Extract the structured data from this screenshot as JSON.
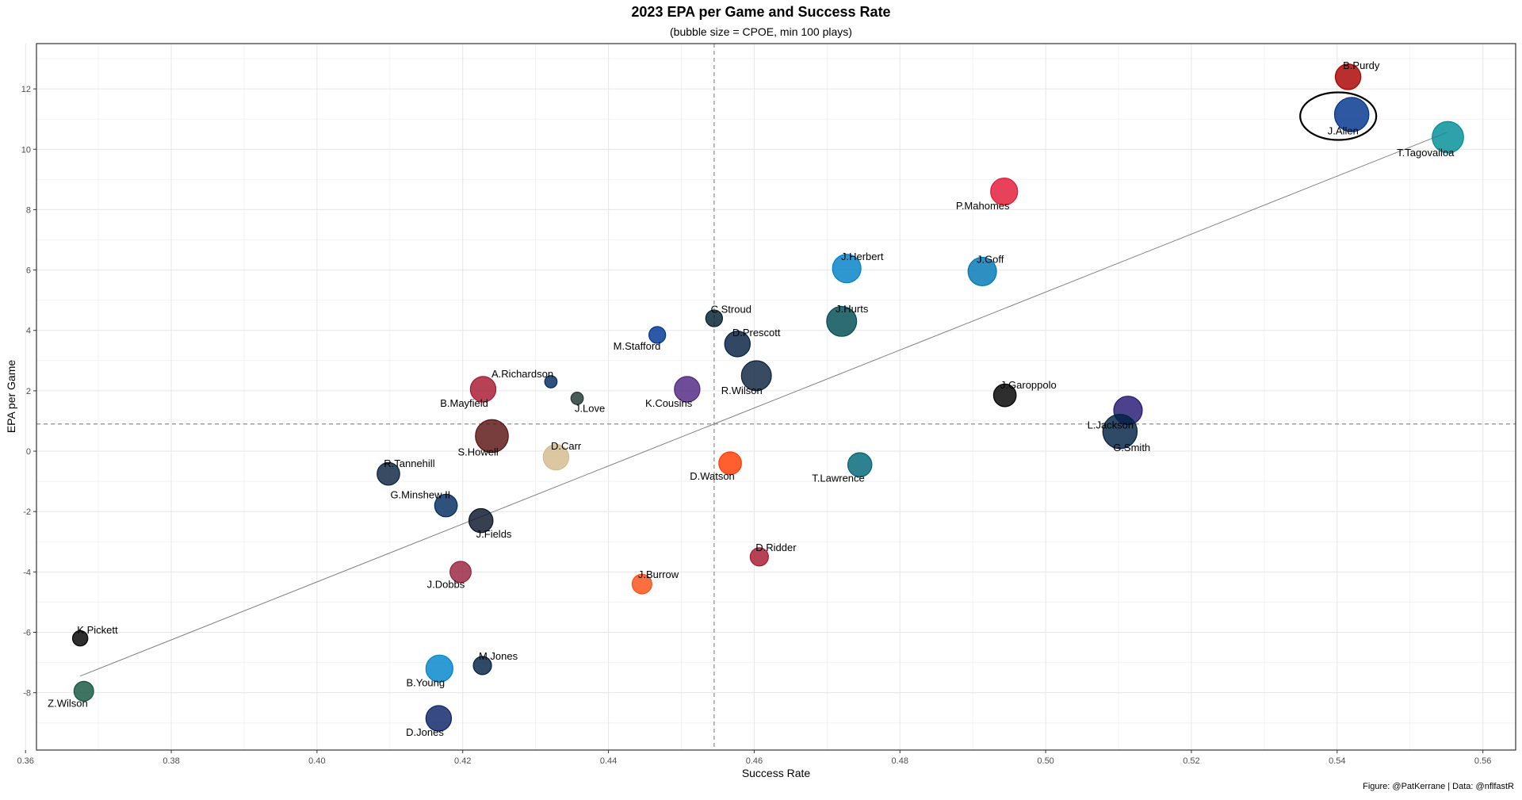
{
  "chart_data": {
    "type": "scatter",
    "title": "2023 EPA per Game and Success Rate",
    "subtitle": "(bubble size = CPOE, min 100 plays)",
    "xlabel": "Success Rate",
    "ylabel": "EPA per Game",
    "caption": "Figure: @PatKerrane | Data: @nflfastR",
    "xlim": [
      0.3615,
      0.5645
    ],
    "ylim": [
      -9.9,
      13.5
    ],
    "xticks": [
      "0.36",
      "0.38",
      "0.40",
      "0.42",
      "0.44",
      "0.46",
      "0.48",
      "0.50",
      "0.52",
      "0.54",
      "0.56"
    ],
    "xtick_values": [
      0.36,
      0.38,
      0.4,
      0.42,
      0.44,
      0.46,
      0.48,
      0.5,
      0.52,
      0.54,
      0.56
    ],
    "yticks": [
      "-8",
      "-6",
      "-4",
      "-2",
      "0",
      "2",
      "4",
      "6",
      "8",
      "10",
      "12"
    ],
    "ytick_values": [
      -8,
      -6,
      -4,
      -2,
      0,
      2,
      4,
      6,
      8,
      10,
      12
    ],
    "grid": true,
    "mean_lines": {
      "x": 0.4545,
      "y": 0.9
    },
    "trend_line": {
      "x": [
        0.3675,
        0.555
      ],
      "y": [
        -7.45,
        10.55
      ]
    },
    "highlight": "J.Allen",
    "points": [
      {
        "name": "B.Purdy",
        "x": 0.5415,
        "y": 12.4,
        "size": 6,
        "color": "#AA0000",
        "label_pos": "above-right"
      },
      {
        "name": "J.Allen",
        "x": 0.542,
        "y": 11.15,
        "size": 9,
        "color": "#00338D",
        "label_pos": "below-left"
      },
      {
        "name": "T.Tagovailoa",
        "x": 0.5552,
        "y": 10.4,
        "size": 8,
        "color": "#008E97",
        "label_pos": "below-left"
      },
      {
        "name": "P.Mahomes",
        "x": 0.4943,
        "y": 8.6,
        "size": 6.5,
        "color": "#E31837",
        "label_pos": "below-left"
      },
      {
        "name": "J.Herbert",
        "x": 0.4727,
        "y": 6.05,
        "size": 7,
        "color": "#0080C6",
        "label_pos": "above-right"
      },
      {
        "name": "J.Goff",
        "x": 0.4913,
        "y": 5.95,
        "size": 7,
        "color": "#0076B6",
        "label_pos": "above-right"
      },
      {
        "name": "C.Stroud",
        "x": 0.4545,
        "y": 4.4,
        "size": 3,
        "color": "#03202F",
        "label_pos": "above-right"
      },
      {
        "name": "M.Stafford",
        "x": 0.4467,
        "y": 3.85,
        "size": 3,
        "color": "#003594",
        "label_pos": "below-left"
      },
      {
        "name": "J.Hurts",
        "x": 0.472,
        "y": 4.3,
        "size": 7.5,
        "color": "#004C54",
        "label_pos": "above-right"
      },
      {
        "name": "D.Prescott",
        "x": 0.4577,
        "y": 3.55,
        "size": 6,
        "color": "#041E42",
        "label_pos": "above-right"
      },
      {
        "name": "R.Wilson",
        "x": 0.4603,
        "y": 2.5,
        "size": 7.5,
        "color": "#0C2340",
        "label_pos": "below-left"
      },
      {
        "name": "A.Richardson",
        "x": 0.4321,
        "y": 2.3,
        "size": 1.5,
        "color": "#002C5F",
        "label_pos": "above-left"
      },
      {
        "name": "J.Love",
        "x": 0.4357,
        "y": 1.75,
        "size": 1.5,
        "color": "#203731",
        "label_pos": "below-right"
      },
      {
        "name": "K.Cousins",
        "x": 0.4508,
        "y": 2.05,
        "size": 6,
        "color": "#4F2683",
        "label_pos": "below-left"
      },
      {
        "name": "B.Mayfield",
        "x": 0.4228,
        "y": 2.05,
        "size": 6,
        "color": "#A71930",
        "label_pos": "below-left"
      },
      {
        "name": "J.Garoppolo",
        "x": 0.4944,
        "y": 1.85,
        "size": 5,
        "color": "#000000",
        "label_pos": "above-right"
      },
      {
        "name": "L.Jackson",
        "x": 0.5113,
        "y": 1.35,
        "size": 7,
        "color": "#241773",
        "label_pos": "below-left"
      },
      {
        "name": "G.Smith",
        "x": 0.5102,
        "y": 0.65,
        "size": 9,
        "color": "#002244",
        "label_pos": "below-right"
      },
      {
        "name": "S.Howell",
        "x": 0.424,
        "y": 0.5,
        "size": 8.5,
        "color": "#5A1414",
        "label_pos": "below-left"
      },
      {
        "name": "D.Carr",
        "x": 0.4328,
        "y": -0.2,
        "size": 6,
        "color": "#D3BC8D",
        "label_pos": "above-right"
      },
      {
        "name": "D.Watson",
        "x": 0.4567,
        "y": -0.4,
        "size": 5,
        "color": "#FF3C00",
        "label_pos": "below-left"
      },
      {
        "name": "T.Lawrence",
        "x": 0.4745,
        "y": -0.45,
        "size": 5.5,
        "color": "#006778",
        "label_pos": "below-left"
      },
      {
        "name": "R.Tannehill",
        "x": 0.4098,
        "y": -0.75,
        "size": 5,
        "color": "#0C2340",
        "label_pos": "above-right"
      },
      {
        "name": "G.Minshew II",
        "x": 0.4177,
        "y": -1.8,
        "size": 5,
        "color": "#002C5F",
        "label_pos": "above-left"
      },
      {
        "name": "J.Fields",
        "x": 0.4225,
        "y": -2.3,
        "size": 5.5,
        "color": "#0B162A",
        "label_pos": "below-right"
      },
      {
        "name": "D.Ridder",
        "x": 0.4607,
        "y": -3.5,
        "size": 3.5,
        "color": "#A71930",
        "label_pos": "above-right"
      },
      {
        "name": "J.Dobbs",
        "x": 0.4197,
        "y": -4.0,
        "size": 4.5,
        "color": "#97233F",
        "label_pos": "below-left"
      },
      {
        "name": "J.Burrow",
        "x": 0.4446,
        "y": -4.4,
        "size": 4,
        "color": "#FB4F14",
        "label_pos": "above-right"
      },
      {
        "name": "K.Pickett",
        "x": 0.3675,
        "y": -6.2,
        "size": 2.5,
        "color": "#000000",
        "label_pos": "above-right"
      },
      {
        "name": "M.Jones",
        "x": 0.4227,
        "y": -7.1,
        "size": 3.5,
        "color": "#002244",
        "label_pos": "above-right"
      },
      {
        "name": "B.Young",
        "x": 0.4168,
        "y": -7.2,
        "size": 6.5,
        "color": "#0085CA",
        "label_pos": "below-left"
      },
      {
        "name": "Z.Wilson",
        "x": 0.368,
        "y": -7.95,
        "size": 4,
        "color": "#125740",
        "label_pos": "below-left"
      },
      {
        "name": "D.Jones",
        "x": 0.4167,
        "y": -8.85,
        "size": 6,
        "color": "#0B2265",
        "label_pos": "below-left"
      }
    ]
  }
}
